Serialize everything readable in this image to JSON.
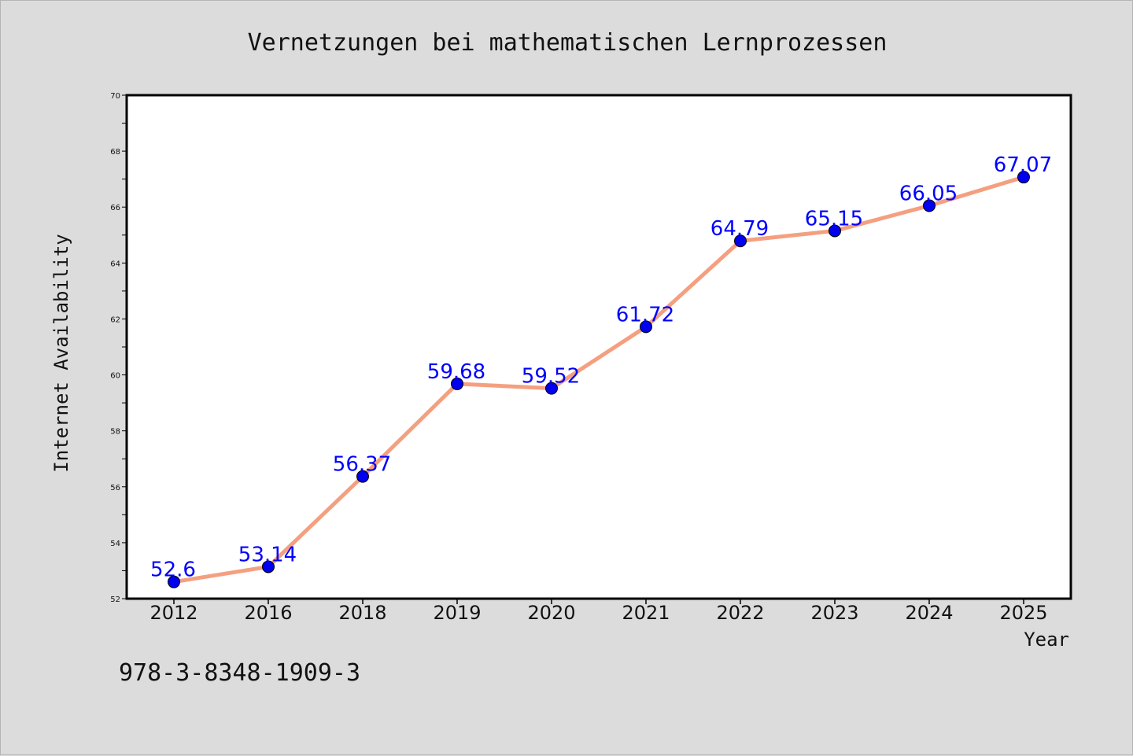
{
  "chart_data": {
    "type": "line",
    "title": "Vernetzungen bei mathematischen Lernprozessen",
    "xlabel": "Year",
    "ylabel": "Internet Availability",
    "categories": [
      "2012",
      "2016",
      "2018",
      "2019",
      "2020",
      "2021",
      "2022",
      "2023",
      "2024",
      "2025"
    ],
    "series": [
      {
        "values": [
          52.6,
          53.14,
          56.37,
          59.68,
          59.52,
          61.72,
          64.79,
          65.15,
          66.05,
          67.07
        ],
        "labels": [
          "52.6",
          "53.14",
          "56.37",
          "59.68",
          "59.52",
          "61.72",
          "64.79",
          "65.15",
          "66.05",
          "67.07"
        ],
        "line_color": "#f4a080",
        "marker_color": "#0000ee",
        "label_color": "#0000ff"
      }
    ],
    "ylim": [
      52,
      70
    ],
    "yticks": [
      "52",
      "54",
      "56",
      "58",
      "60",
      "62",
      "64",
      "66",
      "68",
      "70"
    ],
    "grid": false,
    "legend": "none"
  },
  "footer": {
    "isbn": "978-3-8348-1909-3"
  }
}
